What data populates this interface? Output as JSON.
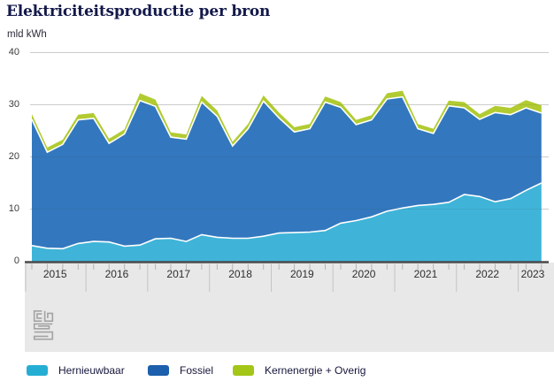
{
  "page": {
    "title": "Elektriciteitsproductie per bron",
    "unit_label": "mld kWh"
  },
  "colors": {
    "area_hernieuwbaar": "#3fb4d8",
    "area_fossiel": "#3378be",
    "area_kernenergie_overig": "#b1cb31",
    "gridline": "#dcdcdc",
    "axis_line": "#4a4a4a",
    "axis_band": "#e8e8e8",
    "tick": "#b5b5b5",
    "separator": "#c4c4c4",
    "title_text": "#13194a",
    "white_divider": "#ffffff"
  },
  "legend": [
    {
      "label": "Hernieuwbaar",
      "color": "#25aed4"
    },
    {
      "label": "Fossiel",
      "color": "#1c5fac"
    },
    {
      "label": "Kernenergie + Overig",
      "color": "#a3c617"
    }
  ],
  "logo": {
    "name": "CBS"
  },
  "chart_data": {
    "type": "area",
    "stacked": true,
    "title": "Elektriciteitsproductie per bron",
    "ylabel": "mld kWh",
    "ylim": [
      0,
      40
    ],
    "yticks": [
      0,
      10,
      20,
      30,
      40
    ],
    "grid": true,
    "legend_position": "bottom",
    "years": [
      "2015",
      "2016",
      "2017",
      "2018",
      "2019",
      "2020",
      "2021",
      "2022",
      "2023"
    ],
    "x": [
      "2015 Q1",
      "2015 Q2",
      "2015 Q3",
      "2015 Q4",
      "2016 Q1",
      "2016 Q2",
      "2016 Q3",
      "2016 Q4",
      "2017 Q1",
      "2017 Q2",
      "2017 Q3",
      "2017 Q4",
      "2018 Q1",
      "2018 Q2",
      "2018 Q3",
      "2018 Q4",
      "2019 Q1",
      "2019 Q2",
      "2019 Q3",
      "2019 Q4",
      "2020 Q1",
      "2020 Q2",
      "2020 Q3",
      "2020 Q4",
      "2021 Q1",
      "2021 Q2",
      "2021 Q3",
      "2021 Q4",
      "2022 Q1",
      "2022 Q2",
      "2022 Q3",
      "2022 Q4",
      "2023 Q1",
      "2023 Q2"
    ],
    "series": [
      {
        "name": "Hernieuwbaar",
        "color": "#3fb4d8",
        "values": [
          3.0,
          2.5,
          2.4,
          3.4,
          3.8,
          3.7,
          2.9,
          3.1,
          4.3,
          4.4,
          3.8,
          5.1,
          4.6,
          4.4,
          4.4,
          4.8,
          5.4,
          5.5,
          5.6,
          5.9,
          7.3,
          7.8,
          8.5,
          9.6,
          10.2,
          10.7,
          10.9,
          11.3,
          12.8,
          12.4,
          11.4,
          12.0,
          13.6,
          15.0
        ]
      },
      {
        "name": "Fossiel",
        "color": "#3378be",
        "values": [
          24.2,
          18.4,
          20.0,
          23.7,
          23.6,
          18.9,
          21.5,
          27.7,
          25.4,
          19.4,
          19.6,
          25.4,
          23.2,
          17.7,
          21.0,
          25.9,
          22.1,
          19.3,
          19.8,
          24.6,
          22.2,
          18.4,
          18.6,
          21.5,
          21.3,
          14.7,
          13.6,
          18.5,
          16.6,
          14.8,
          17.1,
          16.1,
          15.8,
          13.4
        ]
      },
      {
        "name": "Kernenergie + Overig",
        "color": "#b1cb31",
        "values": [
          1.0,
          0.9,
          0.9,
          1.0,
          1.0,
          0.9,
          0.9,
          1.4,
          1.3,
          0.9,
          0.9,
          1.2,
          1.1,
          0.8,
          0.9,
          1.1,
          1.0,
          0.9,
          0.9,
          1.1,
          1.0,
          0.9,
          0.9,
          1.1,
          1.2,
          0.9,
          0.9,
          1.0,
          1.1,
          1.0,
          1.3,
          1.3,
          1.5,
          1.5
        ]
      }
    ]
  }
}
